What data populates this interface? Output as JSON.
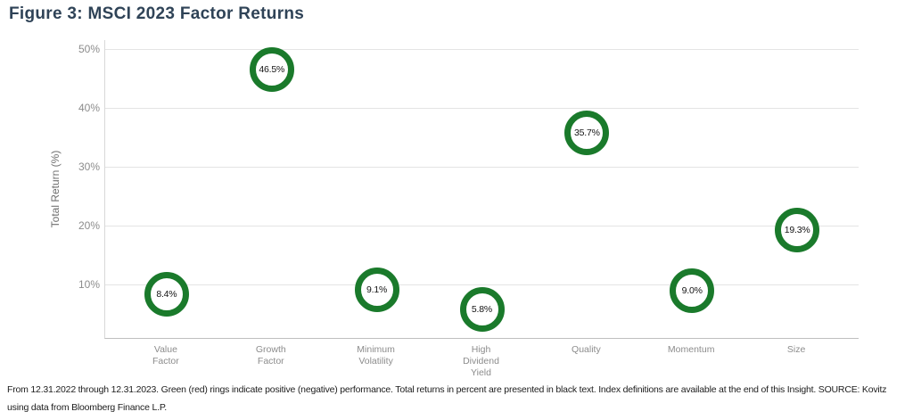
{
  "title": "Figure 3: MSCI 2023 Factor Returns",
  "colors": {
    "title_text": "#2f4357",
    "ring_positive_green": "#1a7a2b",
    "axis_text_gray": "#8c8c8c",
    "gridline_gray": "#e4e4e4",
    "value_text_black": "#141414"
  },
  "chart_data": {
    "type": "scatter",
    "marker_style": "ring",
    "title": "Figure 3: MSCI 2023 Factor Returns",
    "xlabel": "",
    "ylabel": "Total Return (%)",
    "categories": [
      "Value\nFactor",
      "Growth\nFactor",
      "Minimum\nVolatility",
      "High\nDividend\nYield",
      "Quality",
      "Momentum",
      "Size"
    ],
    "values": [
      8.4,
      46.5,
      9.1,
      5.8,
      35.7,
      9.0,
      19.3
    ],
    "value_labels": [
      "8.4%",
      "46.5%",
      "9.1%",
      "5.8%",
      "35.7%",
      "9.0%",
      "19.3%"
    ],
    "yticks": [
      10,
      20,
      30,
      40,
      50
    ],
    "ytick_labels": [
      "10%",
      "20%",
      "30%",
      "40%",
      "50%"
    ],
    "ylim": [
      0.9,
      51.5
    ],
    "grid": "horizontal",
    "legend": "none",
    "ring_color": "#1a7a2b"
  },
  "footer": {
    "lines": [
      "From 12.31.2022 through 12.31.2023. Green (red) rings indicate positive (negative) performance. Total returns in percent are presented in black text. Index definitions are available at the end of this Insight. SOURCE: Kovitz",
      "using data from Bloomberg Finance L.P."
    ]
  }
}
